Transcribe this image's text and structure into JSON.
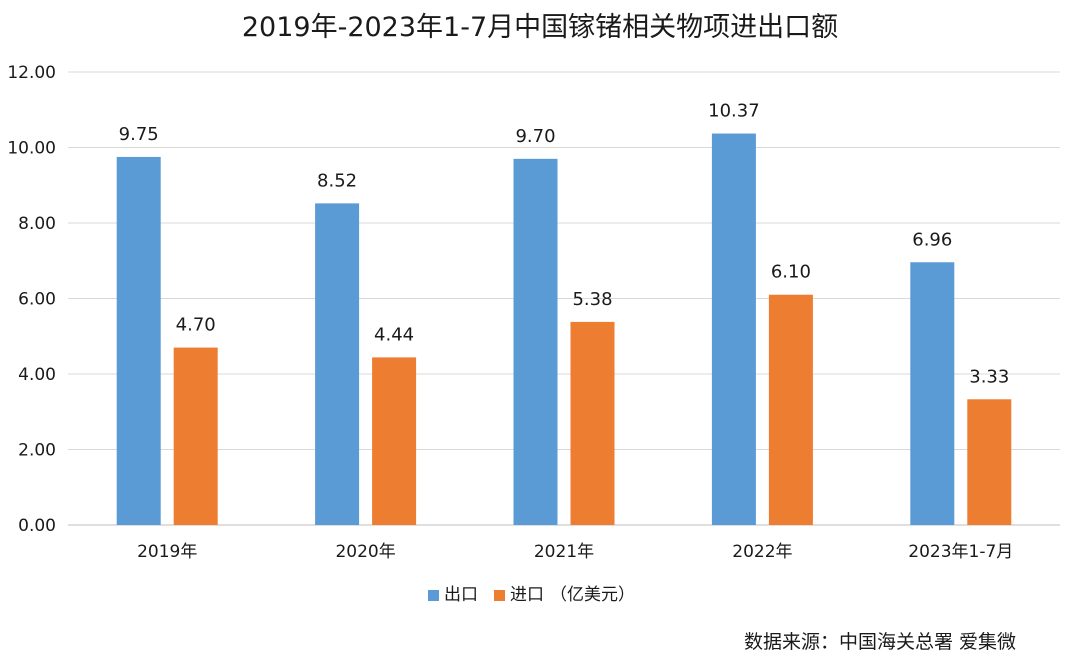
{
  "chart_data": {
    "type": "bar",
    "title": "2019年-2023年1-7月中国镓锗相关物项进出口额",
    "categories": [
      "2019年",
      "2020年",
      "2021年",
      "2022年",
      "2023年1-7月"
    ],
    "series": [
      {
        "name": "出口",
        "values": [
          9.75,
          8.52,
          9.7,
          10.37,
          6.96
        ],
        "color": "#5B9BD5"
      },
      {
        "name": "进口",
        "values": [
          4.7,
          4.44,
          5.38,
          6.1,
          3.33
        ],
        "color": "#ED7D31"
      }
    ],
    "data_labels": [
      [
        "9.75",
        "8.52",
        "9.70",
        "10.37",
        "6.96"
      ],
      [
        "4.70",
        "4.44",
        "5.38",
        "6.10",
        "3.33"
      ]
    ],
    "yticks": [
      "0.00",
      "2.00",
      "4.00",
      "6.00",
      "8.00",
      "10.00",
      "12.00"
    ],
    "ylim": [
      0,
      12
    ],
    "unit": "（亿美元）",
    "legend_position": "bottom",
    "grid": true,
    "source": "数据来源：中国海关总署 爱集微"
  }
}
